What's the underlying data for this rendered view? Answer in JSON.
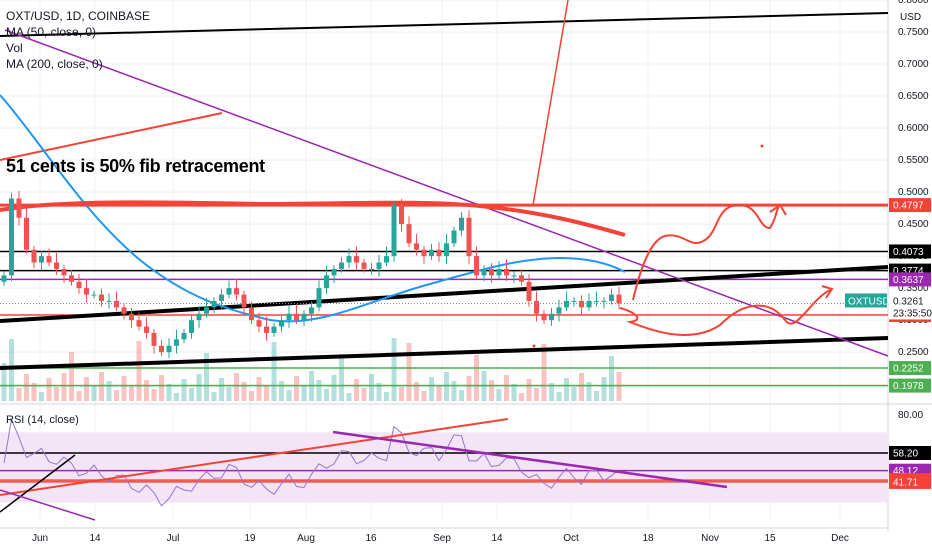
{
  "header": {
    "symbol_line": "OXT/USD, 1D, COINBASE",
    "indicators": [
      "MA (50, close, 0)",
      "Vol",
      "MA (200, close, 0)"
    ],
    "rsi_label": "RSI (14, close)"
  },
  "annotation": "51 cents is 50% fib retracement",
  "colors": {
    "up": "#26a69a",
    "down": "#ef5350",
    "ma50": "#2196f3",
    "ma200": "#f44336",
    "trend_purple": "#9c27b0",
    "rsi_line": "#9575cd",
    "rsi_band": "#f3e5f5"
  },
  "chart_data": [
    {
      "type": "candlestick",
      "title": "OXT/USD, 1D, COINBASE",
      "y_axis_unit": "USD",
      "y_ticks": [
        "0.8000",
        "0.7500",
        "0.7000",
        "0.6500",
        "0.6000",
        "0.5500",
        "0.5000",
        "0.4500",
        "0.4000",
        "0.3500",
        "0.3000",
        "0.2500",
        "0.2000"
      ],
      "ylim": [
        0.18,
        0.8
      ],
      "x_ticks": [
        "Jun",
        "14",
        "Jul",
        "19",
        "Aug",
        "16",
        "Sep",
        "14",
        "Oct",
        "18",
        "Nov",
        "15",
        "Dec"
      ],
      "last_price_tag": {
        "symbol": "OXTUSD",
        "price": "0.3261",
        "countdown": "23:35:50"
      },
      "price_tags": [
        {
          "value": "0.4797",
          "color": "#f44336"
        },
        {
          "value": "0.4073",
          "color": "#000000"
        },
        {
          "value": "0.3774",
          "color": "#000000"
        },
        {
          "value": "0.3637",
          "color": "#9c27b0"
        },
        {
          "value": "0.3080",
          "color": "#f44336"
        },
        {
          "value": "0.2252",
          "color": "#4caf50"
        },
        {
          "value": "0.1978",
          "color": "#4caf50"
        }
      ],
      "horizontal_levels": [
        {
          "y": 0.4797,
          "color": "#f44336"
        },
        {
          "y": 0.4073,
          "color": "#000000"
        },
        {
          "y": 0.3774,
          "color": "#000000"
        },
        {
          "y": 0.3637,
          "color": "#9c27b0"
        },
        {
          "y": 0.308,
          "color": "#f44336"
        },
        {
          "y": 0.2252,
          "color": "#4caf50"
        },
        {
          "y": 0.1978,
          "color": "#4caf50"
        }
      ],
      "closes": [
        0.37,
        0.49,
        0.46,
        0.41,
        0.39,
        0.4,
        0.39,
        0.38,
        0.37,
        0.36,
        0.35,
        0.34,
        0.34,
        0.33,
        0.33,
        0.32,
        0.31,
        0.3,
        0.29,
        0.28,
        0.26,
        0.25,
        0.26,
        0.27,
        0.28,
        0.3,
        0.31,
        0.32,
        0.33,
        0.34,
        0.35,
        0.34,
        0.32,
        0.3,
        0.29,
        0.28,
        0.29,
        0.3,
        0.31,
        0.3,
        0.31,
        0.32,
        0.35,
        0.37,
        0.38,
        0.39,
        0.4,
        0.39,
        0.38,
        0.38,
        0.39,
        0.4,
        0.48,
        0.45,
        0.42,
        0.41,
        0.4,
        0.41,
        0.4,
        0.42,
        0.44,
        0.46,
        0.4,
        0.37,
        0.38,
        0.37,
        0.38,
        0.37,
        0.37,
        0.36,
        0.33,
        0.31,
        0.3,
        0.31,
        0.32,
        0.33,
        0.33,
        0.32,
        0.33,
        0.33,
        0.33,
        0.34,
        0.326
      ]
    },
    {
      "type": "line",
      "title": "RSI (14, close)",
      "y_ticks": [
        "80.00"
      ],
      "levels": [
        "58.20",
        "48.12",
        "42.71",
        "41.71"
      ],
      "band": [
        30,
        70
      ],
      "ylim": [
        20,
        85
      ]
    }
  ]
}
